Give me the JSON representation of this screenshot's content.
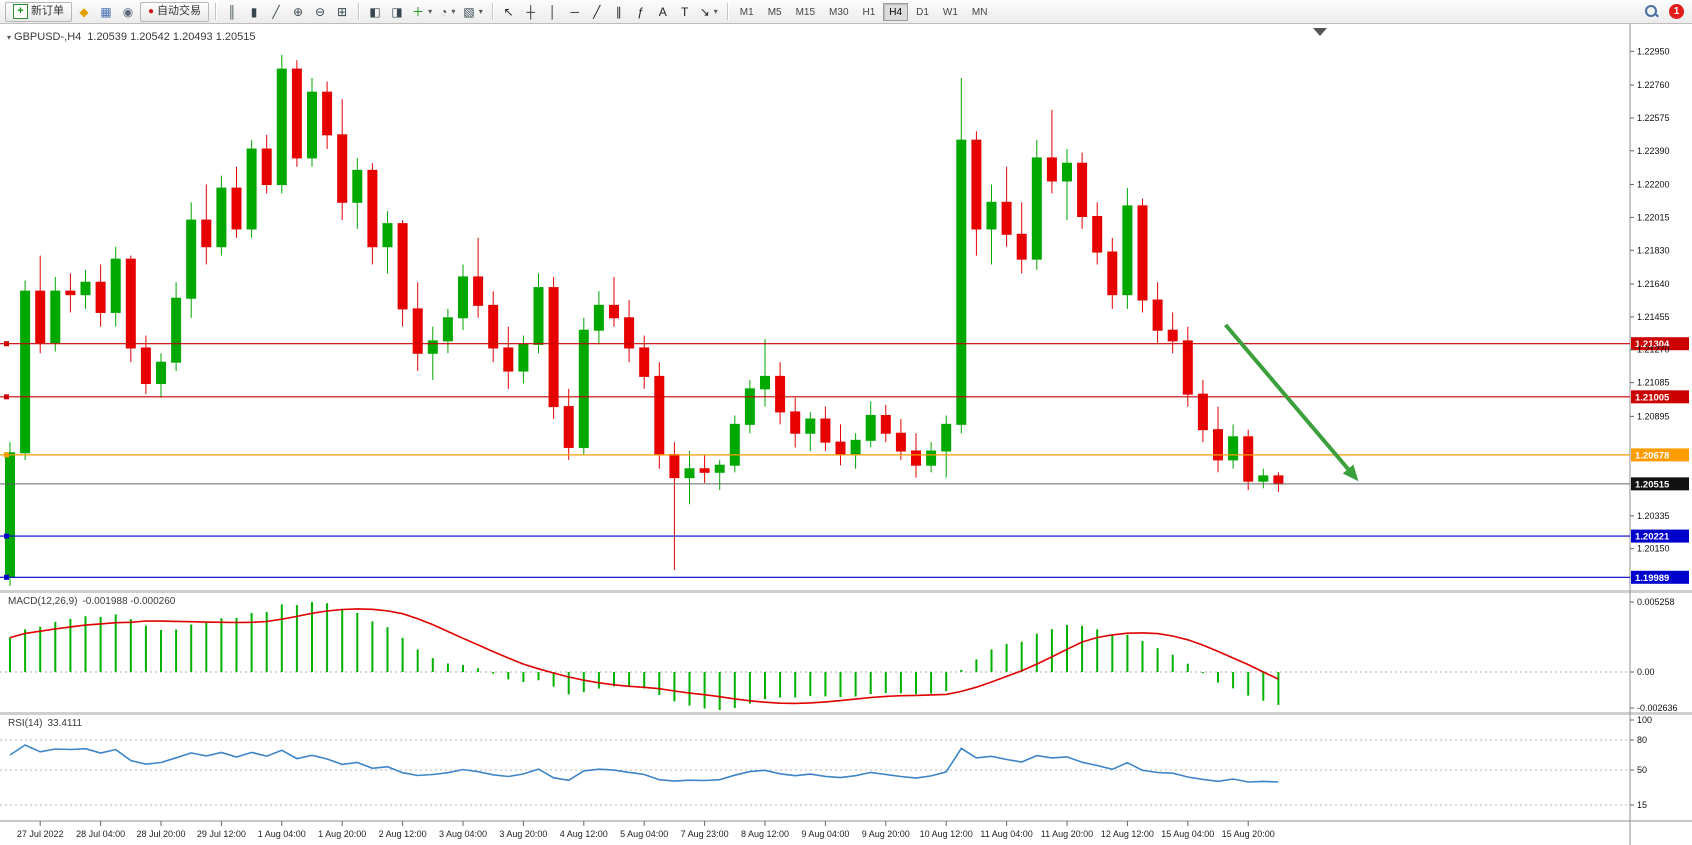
{
  "window": {
    "badge_count": "1"
  },
  "toolbar": {
    "new_order_label": "新订单",
    "autotrading_label": "自动交易",
    "left_icons": [
      {
        "name": "market-watch-icon",
        "glyph": "◆",
        "color": "#e0a300"
      },
      {
        "name": "chart-windows-icon",
        "glyph": "▦",
        "color": "#4a6fb5"
      },
      {
        "name": "navigator-icon",
        "glyph": "◉",
        "color": "#5a6a7a"
      }
    ],
    "chart_icons": [
      {
        "name": "bar-chart-icon",
        "glyph": "║",
        "color": "#37474f"
      },
      {
        "name": "candlestick-chart-icon",
        "glyph": "▮",
        "color": "#37474f"
      },
      {
        "name": "line-chart-icon",
        "glyph": "╱",
        "color": "#37474f"
      },
      {
        "name": "zoom-in-icon",
        "glyph": "⊕",
        "color": "#37474f"
      },
      {
        "name": "zoom-out-icon",
        "glyph": "⊖",
        "color": "#37474f"
      },
      {
        "name": "tile-windows-icon",
        "glyph": "⊞",
        "color": "#37474f"
      }
    ],
    "insert_icons": [
      {
        "name": "auto-arrange-icon",
        "glyph": "◧",
        "color": "#37474f"
      },
      {
        "name": "arrange-windows-icon",
        "glyph": "◨",
        "color": "#37474f"
      },
      {
        "name": "indicators-icon",
        "glyph": "＋",
        "color": "#0a8f08",
        "dropdown": true
      },
      {
        "name": "periods-icon",
        "glyph": "◔",
        "color": "#37474f",
        "dropdown": true
      },
      {
        "name": "templates-icon",
        "glyph": "▧",
        "color": "#37474f",
        "dropdown": true
      }
    ],
    "draw_icons": [
      {
        "name": "cursor-icon",
        "glyph": "↖",
        "color": "#222222"
      },
      {
        "name": "crosshair-icon",
        "glyph": "┼",
        "color": "#222222"
      },
      {
        "name": "vertical-line-icon",
        "glyph": "│",
        "color": "#222222"
      },
      {
        "name": "horizontal-line-icon",
        "glyph": "─",
        "color": "#222222"
      },
      {
        "name": "trendline-icon",
        "glyph": "╱",
        "color": "#222222"
      },
      {
        "name": "channel-icon",
        "glyph": "∥",
        "color": "#222222"
      },
      {
        "name": "fibonacci-icon",
        "glyph": "ƒ",
        "color": "#222222"
      },
      {
        "name": "text-icon",
        "glyph": "A",
        "color": "#222222"
      },
      {
        "name": "text-label-icon",
        "glyph": "T",
        "color": "#222222"
      },
      {
        "name": "arrows-tool-icon",
        "glyph": "↘",
        "color": "#222222",
        "dropdown": true
      }
    ],
    "timeframes": [
      "M1",
      "M5",
      "M15",
      "M30",
      "H1",
      "H4",
      "D1",
      "W1",
      "MN"
    ],
    "active_timeframe": "H4"
  },
  "chart": {
    "symbol_label": "GBPUSD-,H4",
    "ohlc_label": "1.20539 1.20542 1.20493 1.20515",
    "macd_label": "MACD(12,26,9)",
    "macd_values": "-0.001988 -0.000260",
    "rsi_label": "RSI(14)",
    "rsi_value": "33.4111"
  },
  "chart_data": {
    "type": "candlestick",
    "symbol": "GBPUSD-",
    "timeframe": "H4",
    "colors": {
      "up": "#00a800",
      "down": "#e60000",
      "bid_line": "#666666",
      "bid_box": "#111111",
      "axis_text": "#111111",
      "arrow": "#3ba03b"
    },
    "price_axis_labels": [
      "1.22950",
      "1.22760",
      "1.22575",
      "1.22390",
      "1.22200",
      "1.22015",
      "1.21830",
      "1.21640",
      "1.21455",
      "1.21270",
      "1.21085",
      "1.20895",
      "1.20335",
      "1.20150"
    ],
    "time_labels": [
      "27 Jul 2022",
      "28 Jul 04:00",
      "28 Jul 20:00",
      "29 Jul 12:00",
      "1 Aug 04:00",
      "1 Aug 20:00",
      "2 Aug 12:00",
      "3 Aug 04:00",
      "3 Aug 20:00",
      "4 Aug 12:00",
      "5 Aug 04:00",
      "7 Aug 23:00",
      "8 Aug 12:00",
      "9 Aug 04:00",
      "9 Aug 20:00",
      "10 Aug 12:00",
      "11 Aug 04:00",
      "11 Aug 20:00",
      "12 Aug 12:00",
      "15 Aug 04:00",
      "15 Aug 20:00"
    ],
    "hlines": [
      {
        "price": 1.21304,
        "label": "1.21304",
        "color": "#cc0000"
      },
      {
        "price": 1.21005,
        "label": "1.21005",
        "color": "#cc0000"
      },
      {
        "price": 1.20678,
        "label": "1.20678",
        "color": "#ff9c00"
      },
      {
        "price": 1.20221,
        "label": "1.20221",
        "color": "#0000cc"
      },
      {
        "price": 1.19989,
        "label": "1.19989",
        "color": "#0000cc"
      }
    ],
    "bid": {
      "price": 1.20515,
      "label": "1.20515"
    },
    "trend_arrow": {
      "from_bar": 80.5,
      "from_price": 1.2141,
      "to_bar": 89.3,
      "to_price": 1.2053
    },
    "macd": {
      "fast": 12,
      "slow": 26,
      "signal": 9,
      "axis_labels": [
        "0.005258",
        "0.00",
        "-0.002636"
      ],
      "axis_values": [
        0.005258,
        0,
        -0.002636
      ],
      "hist_color": "#00b200",
      "signal_color": "#e00000"
    },
    "rsi": {
      "period": 14,
      "axis_labels": [
        "100",
        "80",
        "50",
        "15"
      ],
      "axis_values": [
        100,
        80,
        50,
        15
      ],
      "line_color": "#3d85c6"
    },
    "candles": [
      [
        1.1999,
        1.2075,
        1.1994,
        1.2069
      ],
      [
        1.2069,
        1.2166,
        1.2065,
        1.216
      ],
      [
        1.216,
        1.218,
        1.2125,
        1.2131
      ],
      [
        1.2131,
        1.2168,
        1.2126,
        1.216
      ],
      [
        1.216,
        1.217,
        1.2148,
        1.2158
      ],
      [
        1.2158,
        1.2172,
        1.215,
        1.2165
      ],
      [
        1.2165,
        1.2175,
        1.214,
        1.2148
      ],
      [
        1.2148,
        1.2185,
        1.214,
        1.2178
      ],
      [
        1.2178,
        1.218,
        1.212,
        1.2128
      ],
      [
        1.2128,
        1.2135,
        1.2102,
        1.2108
      ],
      [
        1.2108,
        1.2125,
        1.21,
        1.212
      ],
      [
        1.212,
        1.2165,
        1.2115,
        1.2156
      ],
      [
        1.2156,
        1.221,
        1.2145,
        1.22
      ],
      [
        1.22,
        1.222,
        1.2175,
        1.2185
      ],
      [
        1.2185,
        1.2225,
        1.218,
        1.2218
      ],
      [
        1.2218,
        1.223,
        1.219,
        1.2195
      ],
      [
        1.2195,
        1.2245,
        1.219,
        1.224
      ],
      [
        1.224,
        1.2248,
        1.2215,
        1.222
      ],
      [
        1.222,
        1.2293,
        1.2215,
        1.2285
      ],
      [
        1.2285,
        1.229,
        1.223,
        1.2235
      ],
      [
        1.2235,
        1.228,
        1.223,
        1.2272
      ],
      [
        1.2272,
        1.2278,
        1.224,
        1.2248
      ],
      [
        1.2248,
        1.2268,
        1.22,
        1.221
      ],
      [
        1.221,
        1.2235,
        1.2195,
        1.2228
      ],
      [
        1.2228,
        1.2232,
        1.2175,
        1.2185
      ],
      [
        1.2185,
        1.2205,
        1.217,
        1.2198
      ],
      [
        1.2198,
        1.22,
        1.214,
        1.215
      ],
      [
        1.215,
        1.2165,
        1.2115,
        1.2125
      ],
      [
        1.2125,
        1.214,
        1.211,
        1.2132
      ],
      [
        1.2132,
        1.215,
        1.2125,
        1.2145
      ],
      [
        1.2145,
        1.2175,
        1.2138,
        1.2168
      ],
      [
        1.2168,
        1.219,
        1.2145,
        1.2152
      ],
      [
        1.2152,
        1.216,
        1.212,
        1.2128
      ],
      [
        1.2128,
        1.214,
        1.2105,
        1.2115
      ],
      [
        1.2115,
        1.2135,
        1.2108,
        1.213
      ],
      [
        1.213,
        1.217,
        1.2125,
        1.2162
      ],
      [
        1.2162,
        1.2168,
        1.2088,
        1.2095
      ],
      [
        1.2095,
        1.2105,
        1.2065,
        1.2072
      ],
      [
        1.2072,
        1.2145,
        1.2068,
        1.2138
      ],
      [
        1.2138,
        1.216,
        1.213,
        1.2152
      ],
      [
        1.2152,
        1.2168,
        1.214,
        1.2145
      ],
      [
        1.2145,
        1.2155,
        1.212,
        1.2128
      ],
      [
        1.2128,
        1.2135,
        1.2105,
        1.2112
      ],
      [
        1.2112,
        1.212,
        1.206,
        1.2068
      ],
      [
        1.2068,
        1.2075,
        1.2003,
        1.2055
      ],
      [
        1.2055,
        1.207,
        1.204,
        1.206
      ],
      [
        1.206,
        1.2068,
        1.2052,
        1.2058
      ],
      [
        1.2058,
        1.2065,
        1.2048,
        1.2062
      ],
      [
        1.2062,
        1.209,
        1.2058,
        1.2085
      ],
      [
        1.2085,
        1.211,
        1.208,
        1.2105
      ],
      [
        1.2105,
        1.2133,
        1.2095,
        1.2112
      ],
      [
        1.2112,
        1.212,
        1.2085,
        1.2092
      ],
      [
        1.2092,
        1.21,
        1.2072,
        1.208
      ],
      [
        1.208,
        1.2092,
        1.207,
        1.2088
      ],
      [
        1.2088,
        1.2095,
        1.207,
        1.2075
      ],
      [
        1.2075,
        1.2085,
        1.2062,
        1.2068
      ],
      [
        1.2068,
        1.208,
        1.206,
        1.2076
      ],
      [
        1.2076,
        1.2098,
        1.2072,
        1.209
      ],
      [
        1.209,
        1.2096,
        1.2075,
        1.208
      ],
      [
        1.208,
        1.2088,
        1.2065,
        1.207
      ],
      [
        1.207,
        1.208,
        1.2055,
        1.2062
      ],
      [
        1.2062,
        1.2075,
        1.2058,
        1.207
      ],
      [
        1.207,
        1.209,
        1.2055,
        1.2085
      ],
      [
        1.2085,
        1.228,
        1.208,
        1.2245
      ],
      [
        1.2245,
        1.225,
        1.218,
        1.2195
      ],
      [
        1.2195,
        1.222,
        1.2175,
        1.221
      ],
      [
        1.221,
        1.223,
        1.2185,
        1.2192
      ],
      [
        1.2192,
        1.221,
        1.217,
        1.2178
      ],
      [
        1.2178,
        1.2245,
        1.2172,
        1.2235
      ],
      [
        1.2235,
        1.2262,
        1.2215,
        1.2222
      ],
      [
        1.2222,
        1.224,
        1.22,
        1.2232
      ],
      [
        1.2232,
        1.2238,
        1.2195,
        1.2202
      ],
      [
        1.2202,
        1.221,
        1.2175,
        1.2182
      ],
      [
        1.2182,
        1.219,
        1.215,
        1.2158
      ],
      [
        1.2158,
        1.2218,
        1.215,
        1.2208
      ],
      [
        1.2208,
        1.2212,
        1.2148,
        1.2155
      ],
      [
        1.2155,
        1.2165,
        1.213,
        1.2138
      ],
      [
        1.2138,
        1.2148,
        1.2125,
        1.2132
      ],
      [
        1.2132,
        1.214,
        1.2095,
        1.2102
      ],
      [
        1.2102,
        1.211,
        1.2075,
        1.2082
      ],
      [
        1.2082,
        1.2095,
        1.2058,
        1.2065
      ],
      [
        1.2065,
        1.2085,
        1.206,
        1.2078
      ],
      [
        1.2078,
        1.2082,
        1.2048,
        1.2053
      ],
      [
        1.2053,
        1.206,
        1.2049,
        1.2056
      ],
      [
        1.2056,
        1.2058,
        1.2047,
        1.20515
      ]
    ]
  }
}
